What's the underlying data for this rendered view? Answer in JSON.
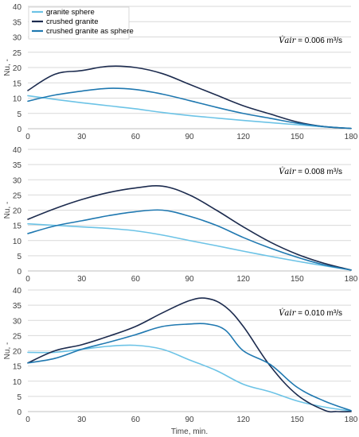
{
  "colors": {
    "granite_sphere": "#6cc3e6",
    "crushed_granite": "#1c2b4e",
    "crushed_granite_as_sphere": "#1f78b0",
    "gridline": "#d9d9d9",
    "tick_text": "#404040"
  },
  "x_ticks": [
    "0",
    "30",
    "60",
    "90",
    "120",
    "150",
    "180"
  ],
  "y_ticks": [
    "0",
    "5",
    "10",
    "15",
    "20",
    "25",
    "30",
    "35",
    "40"
  ],
  "chart_data": [
    {
      "type": "line",
      "title": "",
      "annotation": "= 0.006 m³/s",
      "annotation_symbol": "V̇air",
      "ylabel": "Nu, -",
      "xlabel": "",
      "xlim": [
        0,
        180
      ],
      "ylim": [
        0,
        40
      ],
      "grid": true,
      "legend": "top-left",
      "series": [
        {
          "name": "granite sphere",
          "color": "granite_sphere",
          "x": [
            0,
            15,
            30,
            45,
            60,
            75,
            90,
            105,
            120,
            135,
            150,
            165,
            180
          ],
          "y": [
            10.8,
            9.6,
            8.5,
            7.5,
            6.5,
            5.3,
            4.3,
            3.5,
            2.7,
            2.0,
            1.3,
            0.6,
            0.1
          ]
        },
        {
          "name": "crushed granite",
          "color": "crushed_granite",
          "x": [
            0,
            15,
            30,
            45,
            60,
            75,
            90,
            105,
            120,
            135,
            150,
            165,
            180
          ],
          "y": [
            12.5,
            17.8,
            19.0,
            20.4,
            20.0,
            18.0,
            14.5,
            11.0,
            7.5,
            4.8,
            2.2,
            0.7,
            0.1
          ]
        },
        {
          "name": "crushed granite as sphere",
          "color": "crushed_granite_as_sphere",
          "x": [
            0,
            15,
            30,
            45,
            60,
            75,
            90,
            105,
            120,
            135,
            150,
            165,
            180
          ],
          "y": [
            9.0,
            11.0,
            12.3,
            13.2,
            12.8,
            11.3,
            9.2,
            7.0,
            5.0,
            3.4,
            1.8,
            0.7,
            0.1
          ]
        }
      ]
    },
    {
      "type": "line",
      "title": "",
      "annotation": "= 0.008 m³/s",
      "annotation_symbol": "V̇air",
      "ylabel": "Nu, -",
      "xlabel": "",
      "xlim": [
        0,
        180
      ],
      "ylim": [
        0,
        40
      ],
      "grid": true,
      "series": [
        {
          "name": "granite sphere",
          "color": "granite_sphere",
          "x": [
            0,
            15,
            30,
            45,
            60,
            75,
            90,
            105,
            120,
            135,
            150,
            165,
            180
          ],
          "y": [
            15.5,
            15.0,
            14.5,
            14.0,
            13.2,
            11.8,
            10.0,
            8.3,
            6.5,
            4.8,
            3.2,
            1.7,
            0.3
          ]
        },
        {
          "name": "crushed granite",
          "color": "crushed_granite",
          "x": [
            0,
            15,
            30,
            45,
            60,
            75,
            90,
            105,
            120,
            135,
            150,
            165,
            180
          ],
          "y": [
            17.0,
            20.5,
            23.5,
            25.8,
            27.3,
            27.9,
            25.0,
            20.0,
            14.5,
            9.5,
            5.5,
            2.5,
            0.3
          ]
        },
        {
          "name": "crushed granite as sphere",
          "color": "crushed_granite_as_sphere",
          "x": [
            0,
            15,
            30,
            45,
            60,
            75,
            90,
            105,
            120,
            135,
            150,
            165,
            180
          ],
          "y": [
            12.3,
            14.8,
            16.5,
            18.2,
            19.5,
            20.0,
            18.0,
            15.0,
            11.0,
            7.5,
            4.5,
            2.0,
            0.3
          ]
        }
      ]
    },
    {
      "type": "line",
      "title": "",
      "annotation": "= 0.010 m³/s",
      "annotation_symbol": "V̇air",
      "ylabel": "Nu, -",
      "xlabel": "Time, min.",
      "xlim": [
        0,
        180
      ],
      "ylim": [
        0,
        40
      ],
      "grid": true,
      "series": [
        {
          "name": "granite sphere",
          "color": "granite_sphere",
          "x": [
            0,
            15,
            30,
            45,
            60,
            75,
            90,
            105,
            120,
            135,
            150,
            165,
            180
          ],
          "y": [
            19.5,
            19.5,
            20.5,
            21.5,
            21.8,
            20.5,
            17.0,
            13.5,
            9.0,
            6.5,
            3.5,
            1.5,
            0.2
          ]
        },
        {
          "name": "crushed granite",
          "color": "crushed_granite",
          "x": [
            0,
            15,
            30,
            45,
            60,
            75,
            90,
            100,
            110,
            120,
            135,
            150,
            165,
            172,
            180
          ],
          "y": [
            16.0,
            20.0,
            22.0,
            24.8,
            28.0,
            32.5,
            36.5,
            37.2,
            34.5,
            28.0,
            15.0,
            5.5,
            0.5,
            0,
            0
          ]
        },
        {
          "name": "crushed granite as sphere",
          "color": "crushed_granite_as_sphere",
          "x": [
            0,
            15,
            30,
            45,
            60,
            75,
            90,
            100,
            110,
            120,
            135,
            150,
            165,
            180
          ],
          "y": [
            16.0,
            17.5,
            20.5,
            22.8,
            25.3,
            28.0,
            28.8,
            28.8,
            26.8,
            20.0,
            15.5,
            8.0,
            3.5,
            0.3
          ]
        }
      ]
    }
  ]
}
